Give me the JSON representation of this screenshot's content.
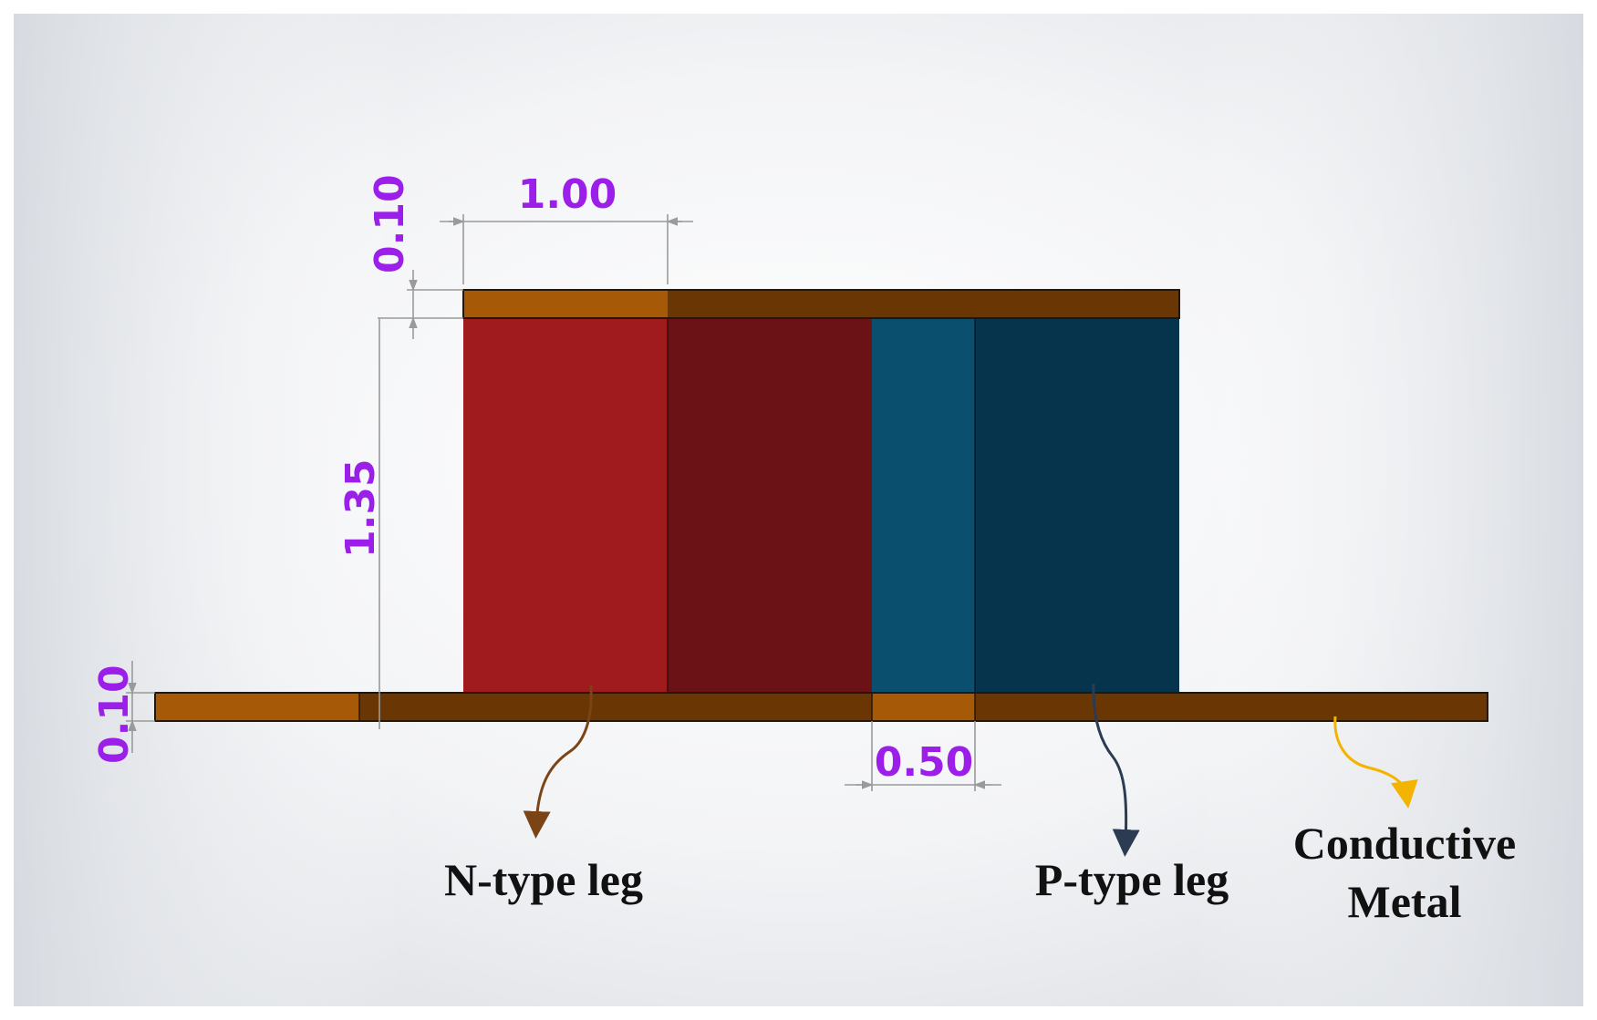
{
  "dimensions": {
    "top_plate_thickness": "0.10",
    "leg_width": "1.00",
    "leg_height": "1.35",
    "bottom_plate_thickness": "0.10",
    "gap_width": "0.50"
  },
  "labels": {
    "n_leg": "N-type leg",
    "p_leg": "P-type leg",
    "metal_line1": "Conductive",
    "metal_line2": "Metal"
  },
  "colors": {
    "dimension_text": "#9b1fe8",
    "n_leg_front": "#a01b1e",
    "n_leg_side": "#6a1216",
    "p_leg_front": "#0b4f6e",
    "p_leg_side": "#07344d",
    "metal_light": "#a65a07",
    "metal_dark": "#6a3604",
    "n_arrow": "#7a4416",
    "p_arrow": "#2a3b52",
    "metal_arrow": "#f2b400"
  }
}
